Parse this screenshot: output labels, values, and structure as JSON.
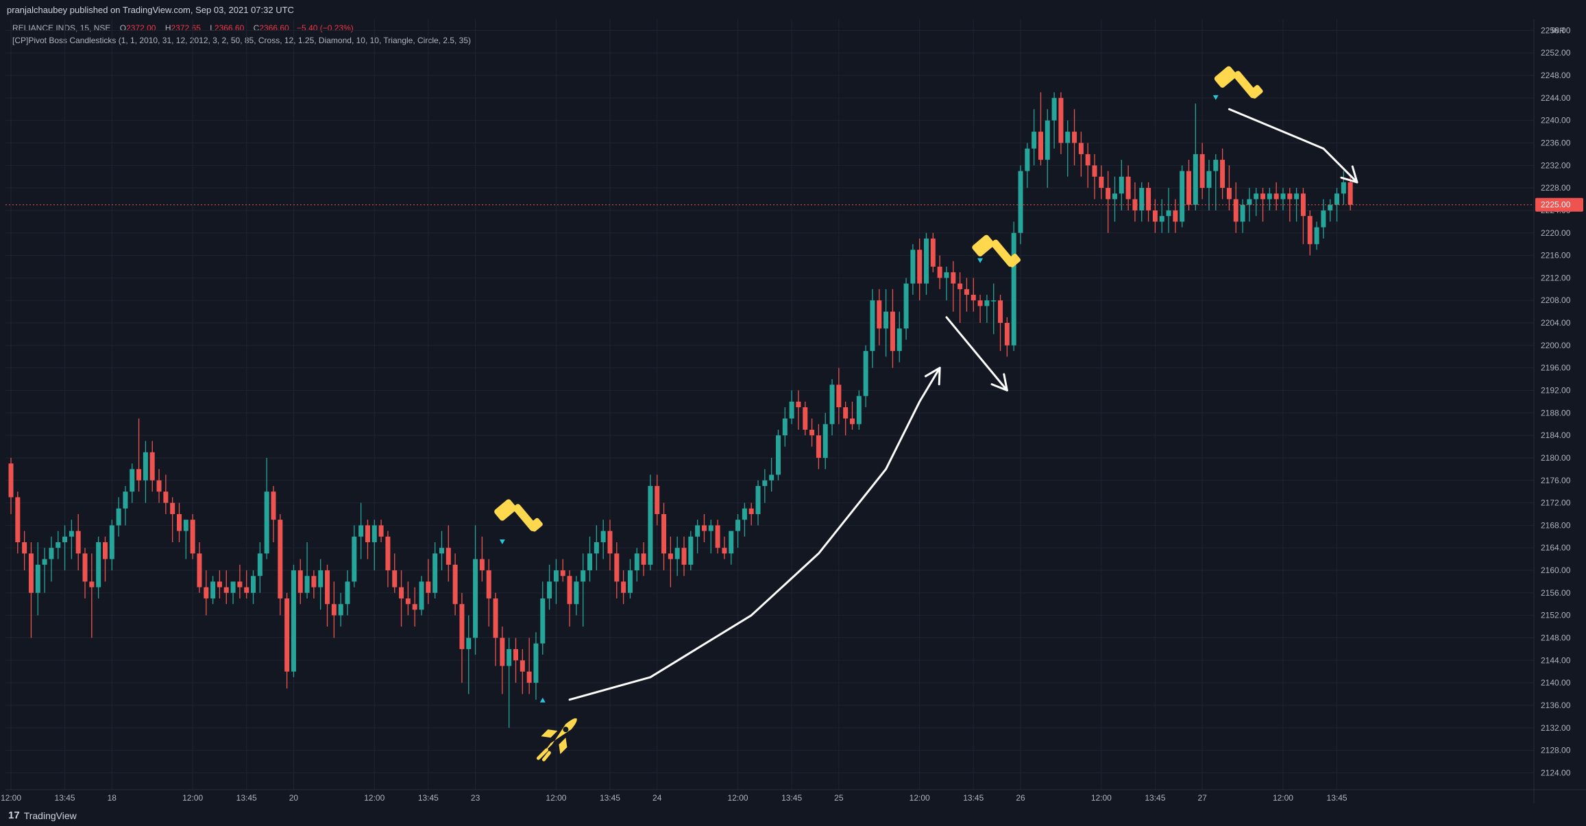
{
  "header": {
    "published_text": "pranjalchaubey published on TradingView.com, Sep 03, 2021 07:32 UTC"
  },
  "legend": {
    "symbol": "RELIANCE INDS, 15, NSE",
    "open_label": "O",
    "open": "2372.00",
    "high_label": "H",
    "high": "2372.65",
    "low_label": "L",
    "low": "2366.60",
    "close_label": "C",
    "close": "2366.60",
    "change": "−5.40 (−0.23%)",
    "indicator": "[CP]Pivot Boss Candlesticks (1, 1, 2010, 31, 12, 2012, 3, 2, 50, 85, Cross, 12, 1.25, Diamond, 10, 10, Triangle, Circle, 2.5, 35)"
  },
  "footer": {
    "brand": "TradingView",
    "brand_mark": "17"
  },
  "colors": {
    "background": "#131722",
    "up": "#26a69a",
    "down": "#ef5350",
    "grid": "#1f2433",
    "text": "#b2b5be",
    "emoji": "#ffd84d",
    "marker": "#26c6da"
  },
  "chart_data": {
    "type": "candlestick",
    "currency": "INR",
    "last_price_label": "2225.00",
    "ylim": [
      2121,
      2258
    ],
    "y_ticks": [
      "2124.00",
      "2128.00",
      "2132.00",
      "2136.00",
      "2140.00",
      "2144.00",
      "2148.00",
      "2152.00",
      "2156.00",
      "2160.00",
      "2164.00",
      "2168.00",
      "2172.00",
      "2176.00",
      "2180.00",
      "2184.00",
      "2188.00",
      "2192.00",
      "2196.00",
      "2200.00",
      "2204.00",
      "2208.00",
      "2212.00",
      "2216.00",
      "2220.00",
      "2224.00",
      "2228.00",
      "2232.00",
      "2236.00",
      "2240.00",
      "2244.00",
      "2248.00",
      "2252.00",
      "2256.00"
    ],
    "x_ticks": [
      {
        "i": 0,
        "label": "12:00"
      },
      {
        "i": 8,
        "label": "13:45"
      },
      {
        "i": 15,
        "label": "18"
      },
      {
        "i": 27,
        "label": "12:00"
      },
      {
        "i": 35,
        "label": "13:45"
      },
      {
        "i": 42,
        "label": "20"
      },
      {
        "i": 54,
        "label": "12:00"
      },
      {
        "i": 62,
        "label": "13:45"
      },
      {
        "i": 69,
        "label": "23"
      },
      {
        "i": 81,
        "label": "12:00"
      },
      {
        "i": 89,
        "label": "13:45"
      },
      {
        "i": 96,
        "label": "24"
      },
      {
        "i": 108,
        "label": "12:00"
      },
      {
        "i": 116,
        "label": "13:45"
      },
      {
        "i": 123,
        "label": "25"
      },
      {
        "i": 135,
        "label": "12:00"
      },
      {
        "i": 143,
        "label": "13:45"
      },
      {
        "i": 150,
        "label": "26"
      },
      {
        "i": 162,
        "label": "12:00"
      },
      {
        "i": 170,
        "label": "13:45"
      },
      {
        "i": 177,
        "label": "27"
      },
      {
        "i": 189,
        "label": "12:00"
      },
      {
        "i": 197,
        "label": "13:45"
      }
    ],
    "candles": [
      [
        2179,
        2180,
        2170,
        2173
      ],
      [
        2173,
        2174,
        2163,
        2165
      ],
      [
        2165,
        2167,
        2160,
        2163
      ],
      [
        2163,
        2165,
        2148,
        2156
      ],
      [
        2156,
        2165,
        2152,
        2161
      ],
      [
        2161,
        2164,
        2156,
        2162
      ],
      [
        2162,
        2166,
        2158,
        2164
      ],
      [
        2164,
        2167,
        2162,
        2165
      ],
      [
        2165,
        2168,
        2160,
        2166
      ],
      [
        2166,
        2169,
        2162,
        2167
      ],
      [
        2167,
        2170,
        2160,
        2163
      ],
      [
        2163,
        2164,
        2155,
        2158
      ],
      [
        2158,
        2163,
        2148,
        2157
      ],
      [
        2157,
        2166,
        2155,
        2165
      ],
      [
        2165,
        2166,
        2158,
        2162
      ],
      [
        2162,
        2169,
        2160,
        2168
      ],
      [
        2168,
        2173,
        2166,
        2171
      ],
      [
        2171,
        2175,
        2168,
        2174
      ],
      [
        2174,
        2179,
        2172,
        2178
      ],
      [
        2178,
        2187,
        2174,
        2176
      ],
      [
        2176,
        2183,
        2172,
        2181
      ],
      [
        2181,
        2183,
        2174,
        2176
      ],
      [
        2176,
        2178,
        2172,
        2174
      ],
      [
        2174,
        2177,
        2170,
        2172
      ],
      [
        2172,
        2173,
        2165,
        2170
      ],
      [
        2170,
        2172,
        2165,
        2167
      ],
      [
        2167,
        2168,
        2162,
        2169
      ],
      [
        2169,
        2170,
        2162,
        2163
      ],
      [
        2163,
        2165,
        2156,
        2157
      ],
      [
        2157,
        2160,
        2152,
        2155
      ],
      [
        2155,
        2159,
        2154,
        2158
      ],
      [
        2158,
        2160,
        2155,
        2157
      ],
      [
        2157,
        2160,
        2154,
        2156
      ],
      [
        2156,
        2158,
        2154,
        2158
      ],
      [
        2158,
        2161,
        2155,
        2157
      ],
      [
        2157,
        2160,
        2155,
        2156
      ],
      [
        2156,
        2160,
        2154,
        2159
      ],
      [
        2159,
        2165,
        2156,
        2163
      ],
      [
        2163,
        2180,
        2162,
        2174
      ],
      [
        2174,
        2175,
        2165,
        2169
      ],
      [
        2169,
        2170,
        2152,
        2155
      ],
      [
        2155,
        2156,
        2139,
        2142
      ],
      [
        2142,
        2161,
        2141,
        2160
      ],
      [
        2160,
        2162,
        2154,
        2156
      ],
      [
        2156,
        2165,
        2155,
        2159
      ],
      [
        2159,
        2160,
        2155,
        2157
      ],
      [
        2157,
        2162,
        2153,
        2160
      ],
      [
        2160,
        2161,
        2150,
        2154
      ],
      [
        2154,
        2158,
        2148,
        2152
      ],
      [
        2152,
        2156,
        2150,
        2154
      ],
      [
        2154,
        2160,
        2152,
        2158
      ],
      [
        2158,
        2168,
        2157,
        2166
      ],
      [
        2166,
        2172,
        2162,
        2168
      ],
      [
        2168,
        2169,
        2162,
        2165
      ],
      [
        2165,
        2169,
        2160,
        2168
      ],
      [
        2168,
        2169,
        2165,
        2166
      ],
      [
        2166,
        2167,
        2157,
        2160
      ],
      [
        2160,
        2163,
        2156,
        2157
      ],
      [
        2157,
        2160,
        2150,
        2155
      ],
      [
        2155,
        2158,
        2152,
        2154
      ],
      [
        2154,
        2157,
        2150,
        2153
      ],
      [
        2153,
        2159,
        2152,
        2158
      ],
      [
        2158,
        2162,
        2154,
        2156
      ],
      [
        2156,
        2165,
        2155,
        2163
      ],
      [
        2163,
        2167,
        2160,
        2164
      ],
      [
        2164,
        2168,
        2158,
        2161
      ],
      [
        2161,
        2163,
        2152,
        2154
      ],
      [
        2154,
        2156,
        2140,
        2146
      ],
      [
        2146,
        2152,
        2138,
        2148
      ],
      [
        2148,
        2168,
        2145,
        2162
      ],
      [
        2162,
        2166,
        2158,
        2160
      ],
      [
        2160,
        2162,
        2150,
        2155
      ],
      [
        2155,
        2156,
        2143,
        2148
      ],
      [
        2148,
        2150,
        2138,
        2143
      ],
      [
        2143,
        2148,
        2132,
        2146
      ],
      [
        2146,
        2148,
        2140,
        2144
      ],
      [
        2144,
        2146,
        2138,
        2142
      ],
      [
        2142,
        2148,
        2138,
        2140
      ],
      [
        2140,
        2149,
        2137,
        2147
      ],
      [
        2147,
        2158,
        2145,
        2155
      ],
      [
        2155,
        2161,
        2153,
        2158
      ],
      [
        2158,
        2162,
        2154,
        2160
      ],
      [
        2160,
        2162,
        2158,
        2159
      ],
      [
        2159,
        2160,
        2150,
        2154
      ],
      [
        2154,
        2159,
        2152,
        2158
      ],
      [
        2158,
        2163,
        2150,
        2160
      ],
      [
        2160,
        2166,
        2158,
        2163
      ],
      [
        2163,
        2168,
        2160,
        2165
      ],
      [
        2165,
        2169,
        2162,
        2167
      ],
      [
        2167,
        2169,
        2160,
        2163
      ],
      [
        2163,
        2165,
        2155,
        2158
      ],
      [
        2158,
        2160,
        2154,
        2156
      ],
      [
        2156,
        2162,
        2155,
        2160
      ],
      [
        2160,
        2164,
        2158,
        2163
      ],
      [
        2163,
        2165,
        2159,
        2161
      ],
      [
        2161,
        2177,
        2160,
        2175
      ],
      [
        2175,
        2177,
        2168,
        2170
      ],
      [
        2170,
        2172,
        2160,
        2163
      ],
      [
        2163,
        2166,
        2157,
        2162
      ],
      [
        2162,
        2166,
        2159,
        2164
      ],
      [
        2164,
        2166,
        2159,
        2161
      ],
      [
        2161,
        2167,
        2160,
        2166
      ],
      [
        2166,
        2169,
        2163,
        2168
      ],
      [
        2168,
        2170,
        2165,
        2167
      ],
      [
        2167,
        2169,
        2163,
        2168
      ],
      [
        2168,
        2169,
        2163,
        2164
      ],
      [
        2164,
        2166,
        2162,
        2163
      ],
      [
        2163,
        2166,
        2161,
        2167
      ],
      [
        2167,
        2170,
        2164,
        2169
      ],
      [
        2169,
        2172,
        2166,
        2171
      ],
      [
        2171,
        2172,
        2168,
        2170
      ],
      [
        2170,
        2176,
        2168,
        2175
      ],
      [
        2175,
        2178,
        2172,
        2176
      ],
      [
        2176,
        2180,
        2174,
        2177
      ],
      [
        2177,
        2185,
        2176,
        2184
      ],
      [
        2184,
        2189,
        2182,
        2187
      ],
      [
        2187,
        2192,
        2186,
        2190
      ],
      [
        2190,
        2192,
        2185,
        2189
      ],
      [
        2189,
        2190,
        2184,
        2185
      ],
      [
        2185,
        2187,
        2182,
        2184
      ],
      [
        2184,
        2186,
        2178,
        2180
      ],
      [
        2180,
        2188,
        2178,
        2186
      ],
      [
        2186,
        2194,
        2184,
        2193
      ],
      [
        2193,
        2196,
        2186,
        2189
      ],
      [
        2189,
        2190,
        2184,
        2187
      ],
      [
        2187,
        2190,
        2185,
        2186
      ],
      [
        2186,
        2192,
        2185,
        2191
      ],
      [
        2191,
        2200,
        2189,
        2199
      ],
      [
        2199,
        2210,
        2196,
        2208
      ],
      [
        2208,
        2210,
        2200,
        2203
      ],
      [
        2203,
        2210,
        2198,
        2206
      ],
      [
        2206,
        2210,
        2196,
        2199
      ],
      [
        2199,
        2206,
        2197,
        2203
      ],
      [
        2203,
        2212,
        2201,
        2211
      ],
      [
        2211,
        2218,
        2209,
        2217
      ],
      [
        2217,
        2219,
        2208,
        2211
      ],
      [
        2211,
        2220,
        2209,
        2219
      ],
      [
        2219,
        2220,
        2213,
        2214
      ],
      [
        2214,
        2216,
        2210,
        2212
      ],
      [
        2212,
        2214,
        2208,
        2213
      ],
      [
        2213,
        2215,
        2206,
        2211
      ],
      [
        2211,
        2213,
        2204,
        2210
      ],
      [
        2210,
        2212,
        2206,
        2209
      ],
      [
        2209,
        2212,
        2206,
        2208
      ],
      [
        2208,
        2209,
        2204,
        2207
      ],
      [
        2207,
        2209,
        2204,
        2208
      ],
      [
        2208,
        2211,
        2202,
        2208
      ],
      [
        2208,
        2209,
        2199,
        2204
      ],
      [
        2204,
        2205,
        2198,
        2200
      ],
      [
        2200,
        2222,
        2199,
        2220
      ],
      [
        2220,
        2232,
        2218,
        2231
      ],
      [
        2231,
        2236,
        2228,
        2235
      ],
      [
        2235,
        2242,
        2232,
        2238
      ],
      [
        2238,
        2245,
        2232,
        2233
      ],
      [
        2233,
        2242,
        2228,
        2240
      ],
      [
        2240,
        2245,
        2235,
        2244
      ],
      [
        2244,
        2245,
        2234,
        2236
      ],
      [
        2236,
        2240,
        2230,
        2238
      ],
      [
        2238,
        2242,
        2232,
        2236
      ],
      [
        2236,
        2238,
        2230,
        2234
      ],
      [
        2234,
        2236,
        2228,
        2232
      ],
      [
        2232,
        2234,
        2226,
        2230
      ],
      [
        2230,
        2232,
        2226,
        2228
      ],
      [
        2228,
        2231,
        2220,
        2226
      ],
      [
        2226,
        2230,
        2222,
        2227
      ],
      [
        2227,
        2233,
        2224,
        2230
      ],
      [
        2230,
        2232,
        2224,
        2226
      ],
      [
        2226,
        2229,
        2222,
        2224
      ],
      [
        2224,
        2229,
        2222,
        2228
      ],
      [
        2228,
        2229,
        2222,
        2224
      ],
      [
        2224,
        2226,
        2220,
        2222
      ],
      [
        2222,
        2226,
        2220,
        2223
      ],
      [
        2223,
        2228,
        2220,
        2224
      ],
      [
        2224,
        2226,
        2220,
        2222
      ],
      [
        2222,
        2232,
        2221,
        2231
      ],
      [
        2231,
        2233,
        2224,
        2225
      ],
      [
        2225,
        2243,
        2224,
        2234
      ],
      [
        2234,
        2236,
        2226,
        2228
      ],
      [
        2228,
        2233,
        2224,
        2231
      ],
      [
        2231,
        2234,
        2224,
        2233
      ],
      [
        2233,
        2235,
        2226,
        2228
      ],
      [
        2228,
        2232,
        2224,
        2226
      ],
      [
        2226,
        2229,
        2220,
        2222
      ],
      [
        2222,
        2226,
        2220,
        2225
      ],
      [
        2225,
        2228,
        2222,
        2226
      ],
      [
        2226,
        2228,
        2223,
        2227
      ],
      [
        2227,
        2228,
        2222,
        2226
      ],
      [
        2226,
        2228,
        2224,
        2227
      ],
      [
        2227,
        2229,
        2224,
        2226
      ],
      [
        2226,
        2228,
        2224,
        2227
      ],
      [
        2227,
        2228,
        2222,
        2226
      ],
      [
        2226,
        2228,
        2222,
        2227
      ],
      [
        2227,
        2228,
        2218,
        2223
      ],
      [
        2223,
        2224,
        2216,
        2218
      ],
      [
        2218,
        2222,
        2217,
        2221
      ],
      [
        2221,
        2226,
        2219,
        2224
      ],
      [
        2224,
        2226,
        2222,
        2225
      ],
      [
        2225,
        2228,
        2222,
        2227
      ],
      [
        2227,
        2231,
        2225,
        2229
      ],
      [
        2229,
        2230,
        2224,
        2225
      ]
    ],
    "markers": [
      {
        "i": 73,
        "kind": "triangle-down",
        "level": 2165
      },
      {
        "i": 79,
        "kind": "triangle-up",
        "level": 2137
      },
      {
        "i": 144,
        "kind": "triangle-down",
        "level": 2215
      },
      {
        "i": 179,
        "kind": "triangle-down",
        "level": 2244
      }
    ],
    "annotations": [
      {
        "kind": "hammer-emoji",
        "i": 75,
        "level": 2171
      },
      {
        "kind": "rocket-emoji",
        "i": 81,
        "level": 2130
      },
      {
        "kind": "hammer-emoji",
        "i": 146,
        "level": 2218
      },
      {
        "kind": "hammer-emoji",
        "i": 182,
        "level": 2248
      }
    ],
    "drawings": [
      {
        "kind": "curve-up-arrow",
        "points": [
          [
            83,
            2137
          ],
          [
            95,
            2141
          ],
          [
            110,
            2152
          ],
          [
            120,
            2163
          ],
          [
            130,
            2178
          ],
          [
            135,
            2190
          ],
          [
            138,
            2196
          ]
        ]
      },
      {
        "kind": "arrow-down",
        "points": [
          [
            139,
            2205
          ],
          [
            148,
            2192
          ]
        ]
      },
      {
        "kind": "arrow-down",
        "points": [
          [
            181,
            2242
          ],
          [
            195,
            2235
          ],
          [
            200,
            2229
          ]
        ]
      }
    ]
  }
}
